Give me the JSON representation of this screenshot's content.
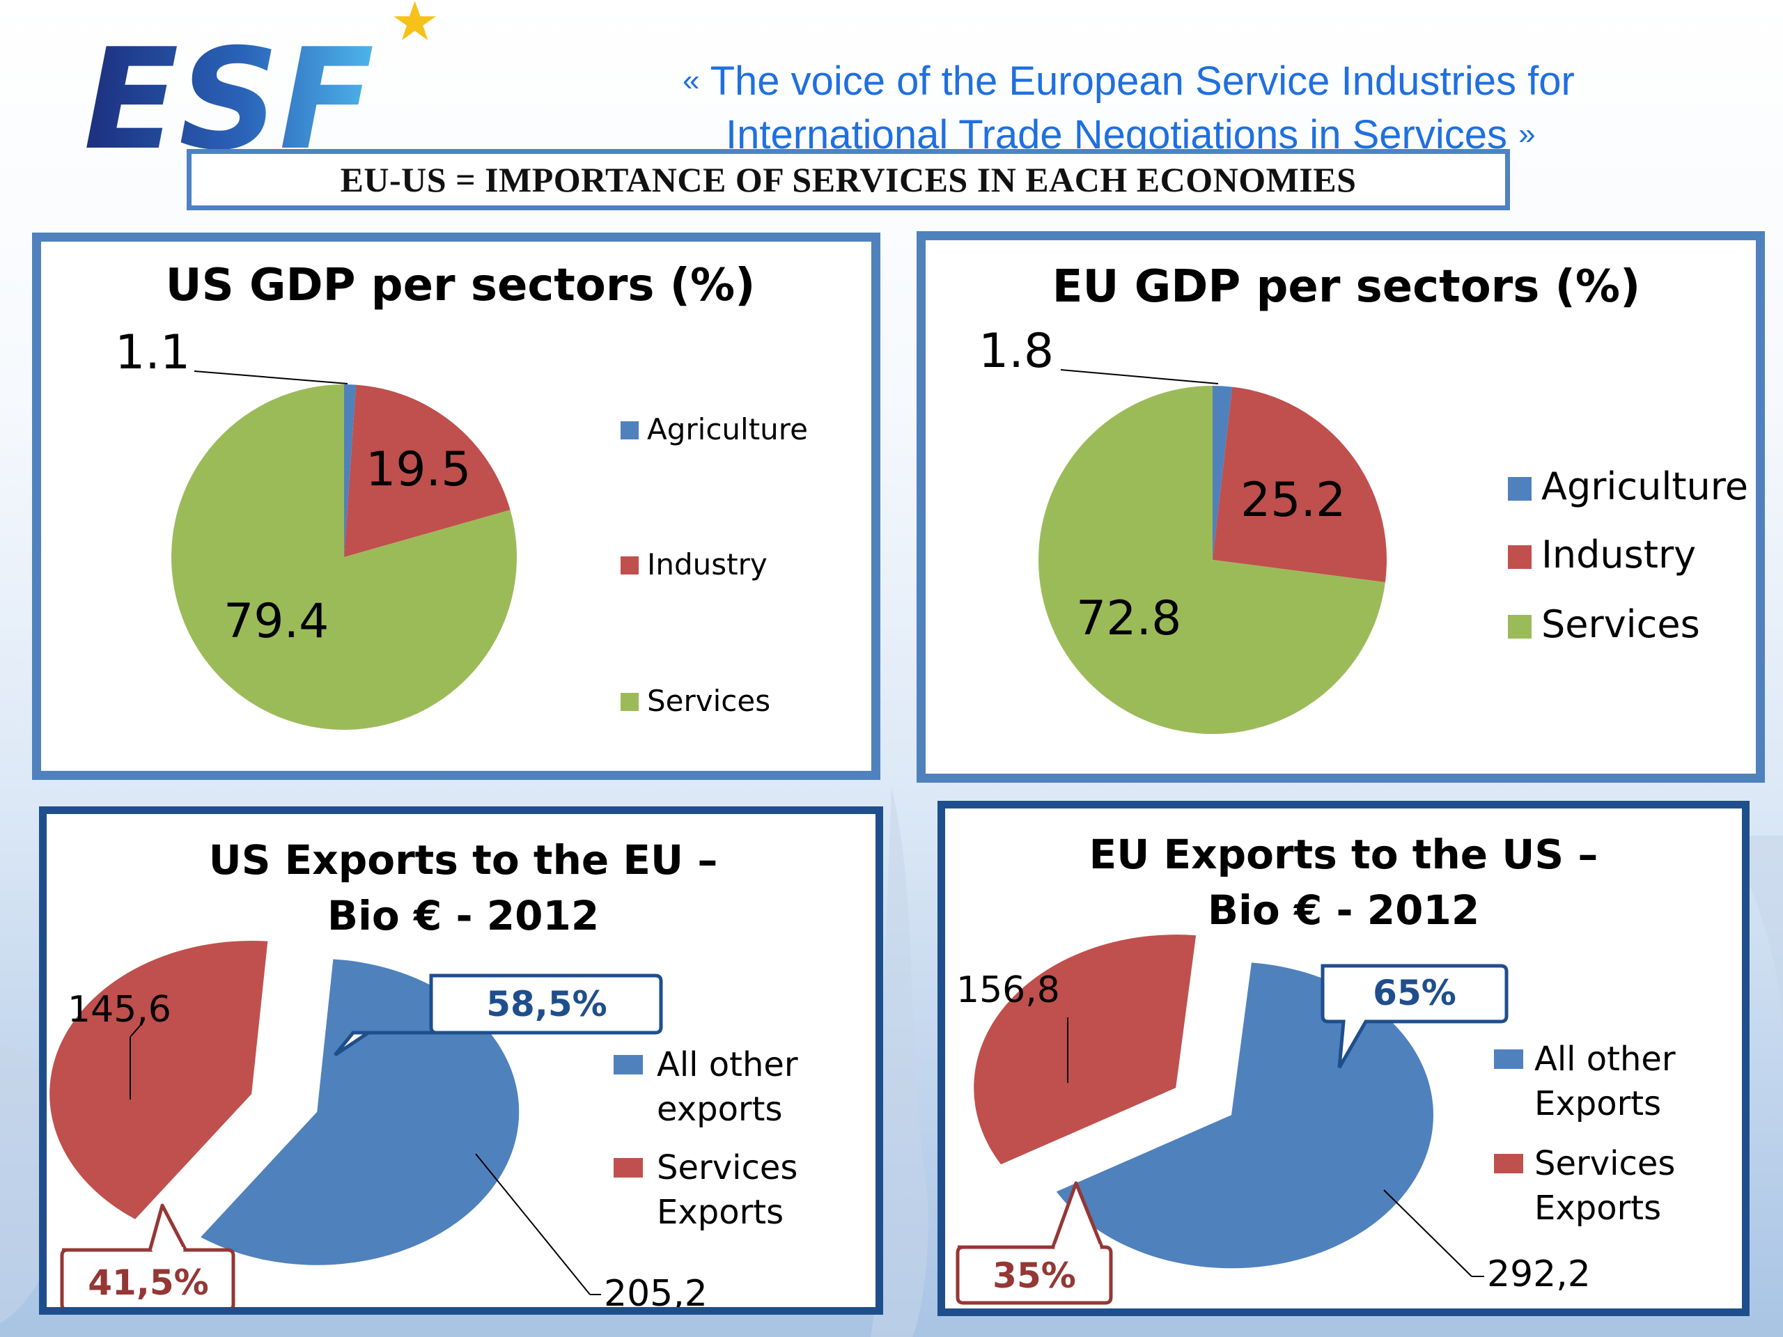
{
  "brand": {
    "logo_text": "ESF",
    "colors": {
      "logo_dark": "#1c2f7d",
      "logo_light": "#3fa3e3",
      "star": "#f6c21a"
    }
  },
  "tagline": {
    "open_quote": "«",
    "line1": "The voice of the European Service Industries for",
    "line2": "International Trade Negotiations in Services",
    "close_quote": "»"
  },
  "header": {
    "title": "EU-US = IMPORTANCE OF SERVICES IN EACH ECONOMIES"
  },
  "colors": {
    "agriculture": "#4f81bd",
    "industry": "#c0504d",
    "services": "#9bbb59",
    "exports_other": "#4f81bd",
    "exports_services": "#c0504d",
    "callout_blue": "#1f4e8c",
    "callout_red": "#953735"
  },
  "chart_data": [
    {
      "type": "pie",
      "title": "US GDP per sectors (%)",
      "categories": [
        "Agriculture",
        "Industry",
        "Services"
      ],
      "values": [
        1.1,
        19.5,
        79.4
      ],
      "data_labels": [
        "1.1",
        "19.5",
        "79.4"
      ],
      "legend": "right"
    },
    {
      "type": "pie",
      "title": "EU GDP per sectors (%)",
      "categories": [
        "Agriculture",
        "Industry",
        "Services"
      ],
      "values": [
        1.8,
        25.2,
        72.8
      ],
      "data_labels": [
        "1.8",
        "25.2",
        "72.8"
      ],
      "legend": "right"
    },
    {
      "type": "pie",
      "title_line1": "US Exports to the EU –",
      "title_line2": "Bio € - 2012",
      "legend_lines": [
        [
          "All other",
          "exports"
        ],
        [
          "Services",
          "Exports"
        ]
      ],
      "categories": [
        "All other exports",
        "Services Exports"
      ],
      "values": [
        205.2,
        145.6
      ],
      "data_labels": [
        "205,2",
        "145,6"
      ],
      "callouts": [
        "58,5%",
        "41,5%"
      ],
      "legend": "right"
    },
    {
      "type": "pie",
      "title_line1": "EU Exports to the US –",
      "title_line2": "Bio € - 2012",
      "legend_lines": [
        [
          "All other",
          "Exports"
        ],
        [
          "Services",
          "Exports"
        ]
      ],
      "categories": [
        "All other Exports",
        "Services Exports"
      ],
      "values": [
        292.2,
        156.8
      ],
      "data_labels": [
        "292,2",
        "156,8"
      ],
      "callouts": [
        "65%",
        "35%"
      ],
      "legend": "right"
    }
  ]
}
